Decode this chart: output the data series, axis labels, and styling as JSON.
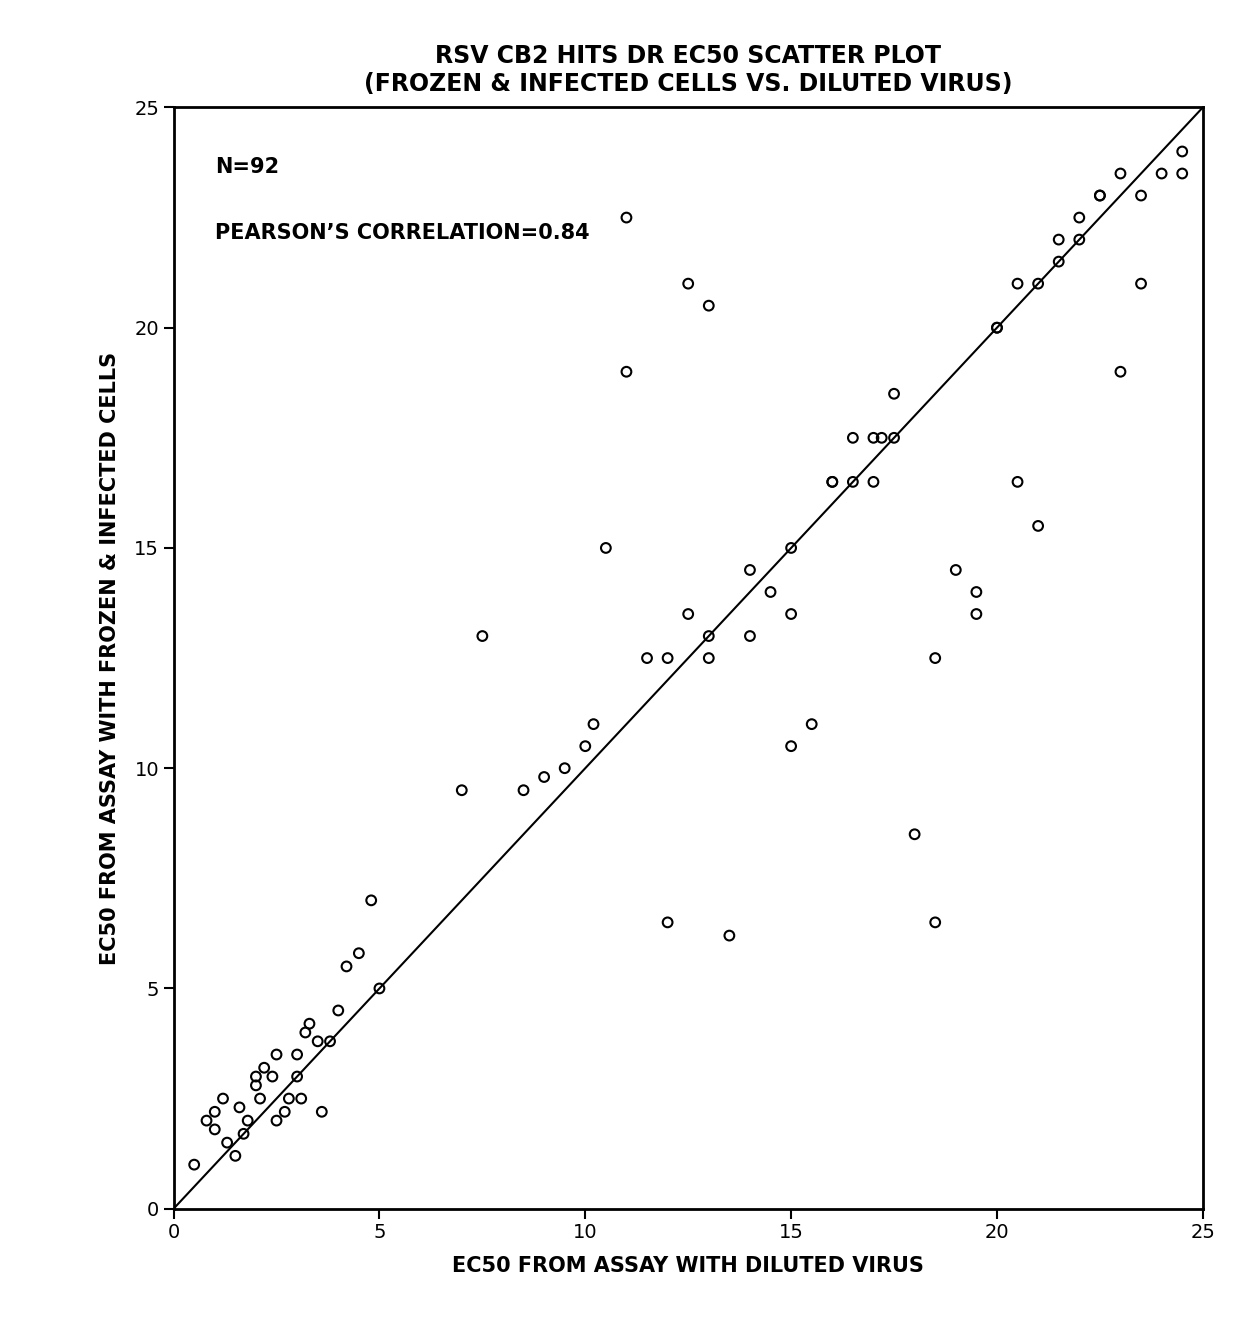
{
  "title_line1": "RSV CB2 HITS DR EC50 SCATTER PLOT",
  "title_line2": "(FROZEN & INFECTED CELLS VS. DILUTED VIRUS)",
  "xlabel": "EC50 FROM ASSAY WITH DILUTED VIRUS",
  "ylabel": "EC50 FROM ASSAY WITH FROZEN & INFECTED CELLS",
  "annotation_n": "N=92",
  "annotation_corr": "PEARSON’S CORRELATION=0.84",
  "xlim": [
    0,
    25
  ],
  "ylim": [
    0,
    25
  ],
  "xticks": [
    0,
    5,
    10,
    15,
    20,
    25
  ],
  "yticks": [
    0,
    5,
    10,
    15,
    20,
    25
  ],
  "x_data": [
    0.5,
    0.8,
    1.0,
    1.0,
    1.2,
    1.3,
    1.5,
    1.6,
    1.7,
    1.8,
    2.0,
    2.0,
    2.1,
    2.2,
    2.4,
    2.5,
    2.5,
    2.7,
    2.8,
    3.0,
    3.0,
    3.1,
    3.2,
    3.3,
    3.5,
    3.6,
    3.8,
    4.0,
    4.2,
    4.5,
    4.8,
    5.0,
    7.0,
    7.5,
    8.5,
    9.0,
    9.5,
    10.0,
    10.2,
    10.5,
    11.0,
    11.5,
    12.0,
    12.0,
    12.5,
    13.0,
    13.0,
    13.5,
    14.0,
    14.5,
    15.0,
    15.0,
    15.5,
    16.0,
    16.5,
    16.5,
    17.0,
    17.0,
    17.2,
    17.5,
    18.0,
    18.5,
    19.0,
    19.5,
    20.0,
    20.0,
    20.5,
    21.0,
    21.0,
    21.5,
    22.0,
    22.0,
    22.5,
    23.0,
    23.0,
    23.5,
    24.0,
    24.5,
    11.0,
    12.5,
    13.0,
    14.0,
    15.0,
    16.0,
    17.5,
    18.5,
    19.5,
    20.5,
    21.5,
    22.5,
    23.5,
    24.5
  ],
  "y_data": [
    1.0,
    2.0,
    2.2,
    1.8,
    2.5,
    1.5,
    1.2,
    2.3,
    1.7,
    2.0,
    2.8,
    3.0,
    2.5,
    3.2,
    3.0,
    2.0,
    3.5,
    2.2,
    2.5,
    3.0,
    3.5,
    2.5,
    4.0,
    4.2,
    3.8,
    2.2,
    3.8,
    4.5,
    5.5,
    5.8,
    7.0,
    5.0,
    9.5,
    13.0,
    9.5,
    9.8,
    10.0,
    10.5,
    11.0,
    15.0,
    22.5,
    12.5,
    12.5,
    6.5,
    13.5,
    13.0,
    12.5,
    6.2,
    14.5,
    14.0,
    15.0,
    10.5,
    11.0,
    16.5,
    16.5,
    17.5,
    17.5,
    16.5,
    17.5,
    18.5,
    8.5,
    12.5,
    14.5,
    13.5,
    20.0,
    20.0,
    16.5,
    21.0,
    15.5,
    21.5,
    22.0,
    22.5,
    23.0,
    23.5,
    19.0,
    21.0,
    23.5,
    24.0,
    19.0,
    21.0,
    20.5,
    13.0,
    13.5,
    16.5,
    17.5,
    6.5,
    14.0,
    21.0,
    22.0,
    23.0,
    23.0,
    23.5
  ],
  "background_color": "#ffffff",
  "marker_color": "none",
  "marker_edgecolor": "#000000",
  "marker_size": 7,
  "line_color": "#000000",
  "title_fontsize": 17,
  "label_fontsize": 15,
  "tick_fontsize": 14,
  "annotation_fontsize": 15
}
